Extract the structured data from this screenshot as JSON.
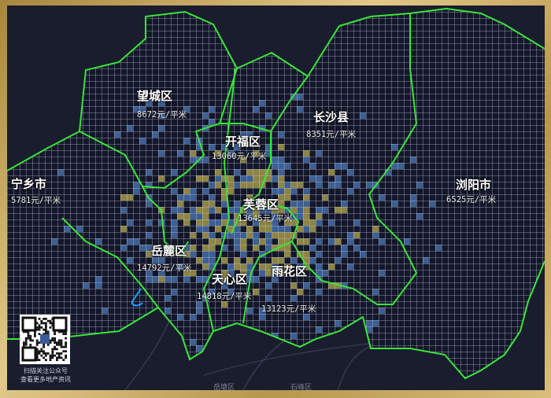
{
  "colors": {
    "boundary": "#39e639",
    "grid": "#d8dce8",
    "heat_low": "#4a78b8",
    "heat_high": "#b5a94e",
    "background": "#1a1d2e",
    "frame": "#c9a961"
  },
  "districts": [
    {
      "name": "望城区",
      "price": "8672元/平米"
    },
    {
      "name": "开福区",
      "price": "13060元/平米"
    },
    {
      "name": "长沙县",
      "price": "8351元/平米"
    },
    {
      "name": "宁乡市",
      "price": "5781元/平米"
    },
    {
      "name": "浏阳市",
      "price": "6525元/平米"
    },
    {
      "name": "芙蓉区",
      "price": "13645元/平米"
    },
    {
      "name": "岳麓区",
      "price": "14792元/平米"
    },
    {
      "name": "天心区",
      "price": "14818元/平米"
    },
    {
      "name": "雨花区",
      "price": "13123元/平米"
    }
  ],
  "base_map_labels": [
    "岳塘区",
    "石峰区"
  ],
  "qr": {
    "caption_line1": "扫描关注公众号",
    "caption_line2": "查看更多地产资讯",
    "icon": "qr-code-icon"
  }
}
